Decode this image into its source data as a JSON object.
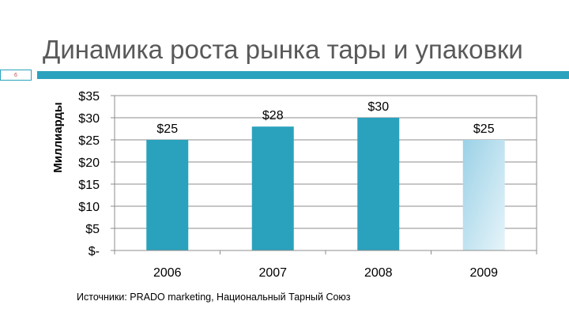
{
  "slide": {
    "title": "Динамика роста рынка тары и упаковки",
    "number": "6",
    "source": "Источники: PRADO marketing, Национальный Тарный Союз"
  },
  "colors": {
    "accent": "#2aa2bd",
    "bar_2009_top": "#9bd1e6",
    "bar_2009_bottom": "#e6f4fa"
  },
  "chart_data": {
    "type": "bar",
    "categories": [
      "2006",
      "2007",
      "2008",
      "2009"
    ],
    "values": [
      25,
      28,
      30,
      25
    ],
    "data_labels": [
      "$25",
      "$28",
      "$30",
      "$25"
    ],
    "ylabel": "Миллиарды",
    "ylim": [
      0,
      35
    ],
    "yticks": [
      0,
      5,
      10,
      15,
      20,
      25,
      30,
      35
    ],
    "ytick_labels": [
      "$-",
      "$5",
      "$10",
      "$15",
      "$20",
      "$25",
      "$30",
      "$35"
    ],
    "grid": true,
    "highlight_last_bar": true
  }
}
